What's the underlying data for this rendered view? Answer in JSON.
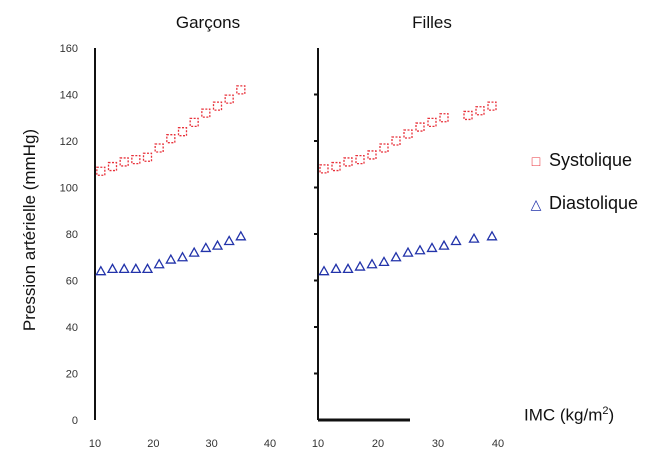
{
  "chart_data": {
    "type": "scatter",
    "ylabel": "Pression artérielle (mmHg)",
    "xlabel": "IMC (kg/m",
    "xlabel_sup": "2",
    "xlabel_close": ")",
    "ylim": [
      0,
      160
    ],
    "yticks": [
      "0",
      "20",
      "40",
      "60",
      "80",
      "100",
      "120",
      "140",
      "160"
    ],
    "xlim": [
      10,
      40
    ],
    "xticks": [
      "10",
      "20",
      "30",
      "40"
    ],
    "colors": {
      "systolique": "#e8313a",
      "diastolique": "#2233aa"
    },
    "legend": [
      {
        "name": "Systolique",
        "symbol": "□",
        "color": "#e8313a"
      },
      {
        "name": "Diastolique",
        "symbol": "△",
        "color": "#2233aa"
      }
    ],
    "panels": [
      {
        "title": "Garçons",
        "series": [
          {
            "name": "Systolique",
            "x": [
              11,
              13,
              15,
              17,
              19,
              21,
              23,
              25,
              27,
              29,
              31,
              33,
              35
            ],
            "y": [
              107,
              109,
              111,
              112,
              113,
              117,
              121,
              124,
              128,
              132,
              135,
              138,
              142
            ]
          },
          {
            "name": "Diastolique",
            "x": [
              11,
              13,
              15,
              17,
              19,
              21,
              23,
              25,
              27,
              29,
              31,
              33,
              35
            ],
            "y": [
              64,
              65,
              65,
              65,
              65,
              67,
              69,
              70,
              72,
              74,
              75,
              77,
              79
            ]
          }
        ]
      },
      {
        "title": "Filles",
        "series": [
          {
            "name": "Systolique",
            "x": [
              11,
              13,
              15,
              17,
              19,
              21,
              23,
              25,
              27,
              29,
              31,
              35,
              37,
              39
            ],
            "y": [
              108,
              109,
              111,
              112,
              114,
              117,
              120,
              123,
              126,
              128,
              130,
              131,
              133,
              135
            ]
          },
          {
            "name": "Diastolique",
            "x": [
              11,
              13,
              15,
              17,
              19,
              21,
              23,
              25,
              27,
              29,
              31,
              33,
              36,
              39
            ],
            "y": [
              64,
              65,
              65,
              66,
              67,
              68,
              70,
              72,
              73,
              74,
              75,
              77,
              78,
              79
            ]
          }
        ]
      }
    ]
  }
}
